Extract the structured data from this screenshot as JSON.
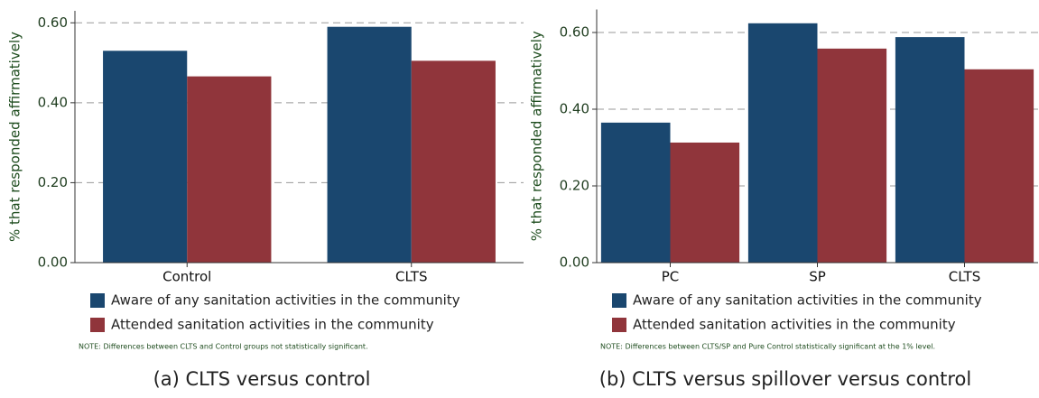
{
  "chart_data": [
    {
      "type": "bar",
      "y_label": "% that responded affirmatively",
      "categories": [
        "Control",
        "CLTS"
      ],
      "series": [
        {
          "name": "Aware of any sanitation activities in the community",
          "color": "#1a476f",
          "values": [
            0.53,
            0.59
          ]
        },
        {
          "name": "Attended sanitation activities in the community",
          "color": "#90353b",
          "values": [
            0.466,
            0.505
          ]
        }
      ],
      "ylim": [
        0,
        0.63
      ],
      "yticks": [
        {
          "value": 0,
          "label": "0.00"
        },
        {
          "value": 0.2,
          "label": "0.20"
        },
        {
          "value": 0.4,
          "label": "0.40"
        },
        {
          "value": 0.6,
          "label": "0.60"
        }
      ],
      "grid": true,
      "note": "NOTE: Differences between CLTS and Control groups not statistically significant.",
      "caption": "(a) CLTS versus control"
    },
    {
      "type": "bar",
      "y_label": "% that responded affirmatively",
      "categories": [
        "PC",
        "SP",
        "CLTS"
      ],
      "series": [
        {
          "name": "Aware of any sanitation activities in the community",
          "color": "#1a476f",
          "values": [
            0.365,
            0.624,
            0.588
          ]
        },
        {
          "name": "Attended sanitation activities in the community",
          "color": "#90353b",
          "values": [
            0.313,
            0.558,
            0.504
          ]
        }
      ],
      "ylim": [
        0,
        0.66
      ],
      "yticks": [
        {
          "value": 0,
          "label": "0.00"
        },
        {
          "value": 0.2,
          "label": "0.20"
        },
        {
          "value": 0.4,
          "label": "0.40"
        },
        {
          "value": 0.6,
          "label": "0.60"
        }
      ],
      "grid": true,
      "note": "NOTE: Differences between CLTS/SP and Pure Control statistically significant at the 1% level.",
      "caption": "(b) CLTS versus spillover versus control"
    }
  ]
}
